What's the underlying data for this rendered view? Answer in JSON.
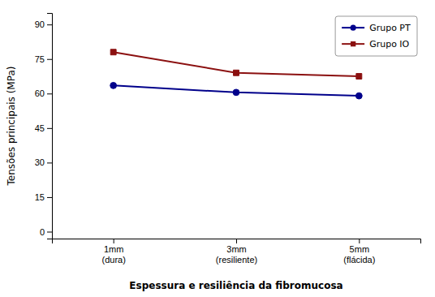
{
  "chart_data": {
    "type": "line",
    "categories": [
      "1mm\n(dura)",
      "3mm\n(resiliente)",
      "5mm\n(flácida)"
    ],
    "series": [
      {
        "name": "Grupo PT",
        "color": "#00008B",
        "marker": "circle",
        "values": [
          63.5,
          60.5,
          59.0
        ]
      },
      {
        "name": "Grupo IO",
        "color": "#8B1010",
        "marker": "square",
        "values": [
          78.0,
          69.0,
          67.5
        ]
      }
    ],
    "y_label": "Tensões principais (MPa)",
    "x_label": "Espessura e resiliência da fibromucosa",
    "ylim": [
      -3,
      95
    ],
    "yticks": [
      0,
      15,
      30,
      45,
      60,
      75,
      90
    ],
    "grid": false,
    "legend": "upper right"
  }
}
